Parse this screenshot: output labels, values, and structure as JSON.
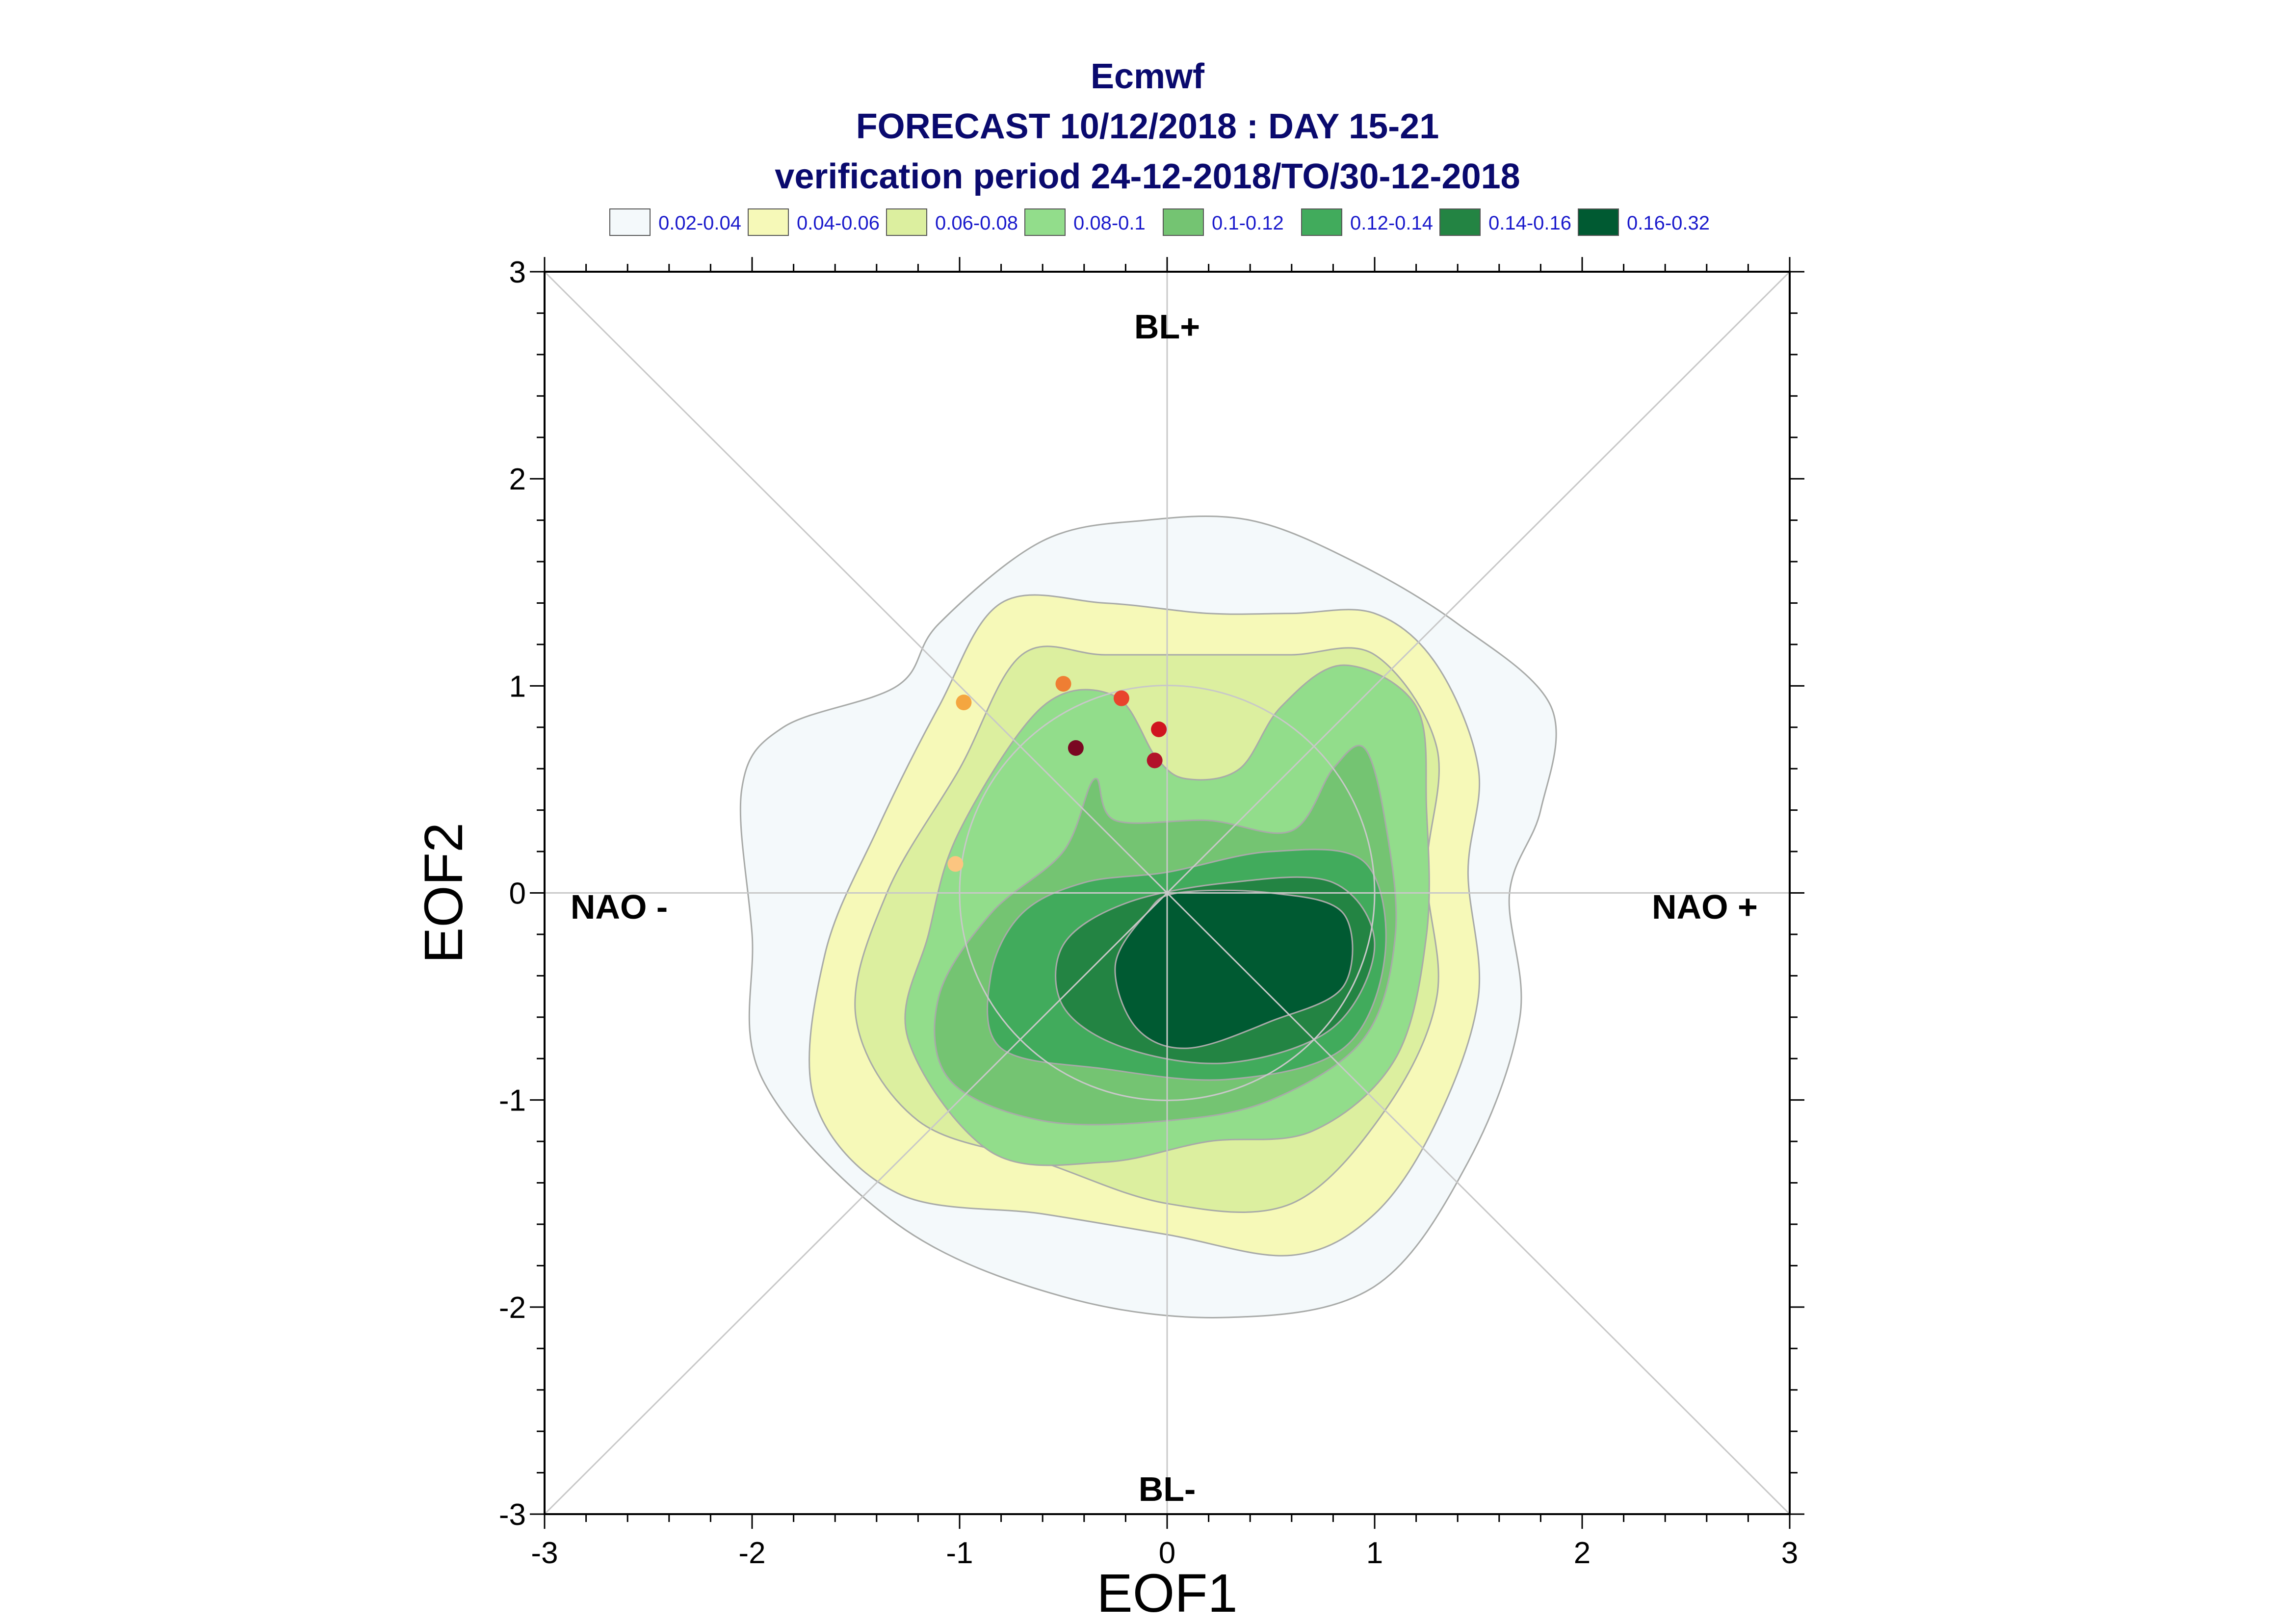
{
  "chart_data": {
    "type": "contour",
    "title": [
      "Ecmwf",
      "FORECAST 10/12/2018 : DAY 15-21",
      "verification period 24-12-2018/TO/30-12-2018"
    ],
    "xlabel": "EOF1",
    "ylabel": "EOF2",
    "xlim": [
      -3,
      3
    ],
    "ylim": [
      -3,
      3
    ],
    "xticks": [
      "-3",
      "-2",
      "-1",
      "0",
      "1",
      "2",
      "3"
    ],
    "yticks": [
      "-3",
      "-2",
      "-1",
      "0",
      "1",
      "2",
      "3"
    ],
    "regime_labels": {
      "top": "BL+",
      "bottom": "BL-",
      "left": "NAO -",
      "right": "NAO +"
    },
    "legend": [
      {
        "label": "0.02-0.04",
        "color": "#f4f9fb"
      },
      {
        "label": "0.04-0.06",
        "color": "#f6f9b8"
      },
      {
        "label": "0.06-0.08",
        "color": "#dcef9f"
      },
      {
        "label": "0.08-0.1",
        "color": "#92dd8b"
      },
      {
        "label": "0.1-0.12",
        "color": "#74c472"
      },
      {
        "label": "0.12-0.14",
        "color": "#41ab5c"
      },
      {
        "label": "0.14-0.16",
        "color": "#238443"
      },
      {
        "label": "0.16-0.32",
        "color": "#005a32"
      }
    ],
    "contours": [
      {
        "level": "0.02-0.04",
        "color": "#f4f9fb",
        "points": [
          [
            -0.6,
            1.7
          ],
          [
            -0.1,
            1.8
          ],
          [
            0.4,
            1.8
          ],
          [
            0.9,
            1.6
          ],
          [
            1.4,
            1.3
          ],
          [
            1.85,
            0.9
          ],
          [
            1.8,
            0.4
          ],
          [
            1.65,
            0
          ],
          [
            1.7,
            -0.6
          ],
          [
            1.45,
            -1.3
          ],
          [
            1.0,
            -1.9
          ],
          [
            0.3,
            -2.05
          ],
          [
            -0.5,
            -1.95
          ],
          [
            -1.3,
            -1.6
          ],
          [
            -1.95,
            -0.9
          ],
          [
            -2.0,
            -0.2
          ],
          [
            -2.05,
            0.5
          ],
          [
            -1.85,
            0.8
          ],
          [
            -1.3,
            1.0
          ],
          [
            -1.1,
            1.3
          ]
        ]
      },
      {
        "level": "0.04-0.06",
        "color": "#f6f9b8",
        "points": [
          [
            -0.8,
            1.4
          ],
          [
            -0.3,
            1.4
          ],
          [
            0.2,
            1.35
          ],
          [
            0.6,
            1.35
          ],
          [
            1.0,
            1.35
          ],
          [
            1.3,
            1.1
          ],
          [
            1.5,
            0.6
          ],
          [
            1.45,
            0.1
          ],
          [
            1.5,
            -0.5
          ],
          [
            1.3,
            -1.1
          ],
          [
            1.0,
            -1.55
          ],
          [
            0.6,
            -1.75
          ],
          [
            0,
            -1.65
          ],
          [
            -0.6,
            -1.55
          ],
          [
            -1.3,
            -1.45
          ],
          [
            -1.7,
            -1.0
          ],
          [
            -1.65,
            -0.3
          ],
          [
            -1.4,
            0.3
          ],
          [
            -1.1,
            0.9
          ]
        ]
      },
      {
        "level": "0.06-0.08",
        "color": "#dcef9f",
        "points": [
          [
            -0.7,
            1.15
          ],
          [
            -0.3,
            1.15
          ],
          [
            0.2,
            1.15
          ],
          [
            0.6,
            1.15
          ],
          [
            1.0,
            1.15
          ],
          [
            1.3,
            0.7
          ],
          [
            1.25,
            0.1
          ],
          [
            1.3,
            -0.5
          ],
          [
            1.05,
            -1.05
          ],
          [
            0.6,
            -1.5
          ],
          [
            0,
            -1.5
          ],
          [
            -0.6,
            -1.3
          ],
          [
            -1.2,
            -1.1
          ],
          [
            -1.5,
            -0.6
          ],
          [
            -1.35,
            0
          ],
          [
            -1.0,
            0.6
          ]
        ]
      },
      {
        "level": "0.08-0.1",
        "color": "#92dd8b",
        "points": [
          [
            -0.6,
            0.9
          ],
          [
            -0.25,
            0.95
          ],
          [
            -0.05,
            0.65
          ],
          [
            0.1,
            0.55
          ],
          [
            0.35,
            0.6
          ],
          [
            0.55,
            0.9
          ],
          [
            0.85,
            1.1
          ],
          [
            1.2,
            0.9
          ],
          [
            1.25,
            0.4
          ],
          [
            1.25,
            -0.2
          ],
          [
            1.1,
            -0.8
          ],
          [
            0.7,
            -1.15
          ],
          [
            0.2,
            -1.2
          ],
          [
            -0.3,
            -1.3
          ],
          [
            -0.85,
            -1.25
          ],
          [
            -1.25,
            -0.7
          ],
          [
            -1.15,
            -0.2
          ],
          [
            -1.0,
            0.3
          ]
        ]
      },
      {
        "level": "0.1-0.12",
        "color": "#74c472",
        "points": [
          [
            -0.35,
            0.55
          ],
          [
            -0.25,
            0.35
          ],
          [
            0.2,
            0.35
          ],
          [
            0.6,
            0.3
          ],
          [
            0.8,
            0.6
          ],
          [
            0.95,
            0.7
          ],
          [
            1.05,
            0.35
          ],
          [
            1.1,
            -0.2
          ],
          [
            0.95,
            -0.7
          ],
          [
            0.5,
            -1.0
          ],
          [
            0,
            -1.1
          ],
          [
            -0.6,
            -1.1
          ],
          [
            -1.05,
            -0.9
          ],
          [
            -1.1,
            -0.5
          ],
          [
            -0.85,
            -0.1
          ],
          [
            -0.5,
            0.2
          ]
        ]
      },
      {
        "level": "0.12-0.14",
        "color": "#41ab5c",
        "points": [
          [
            -0.4,
            0.05
          ],
          [
            0,
            0.1
          ],
          [
            0.5,
            0.2
          ],
          [
            0.95,
            0.15
          ],
          [
            1.05,
            -0.3
          ],
          [
            0.85,
            -0.75
          ],
          [
            0.3,
            -0.9
          ],
          [
            -0.3,
            -0.85
          ],
          [
            -0.8,
            -0.75
          ],
          [
            -0.85,
            -0.4
          ],
          [
            -0.7,
            -0.1
          ]
        ]
      },
      {
        "level": "0.14-0.16",
        "color": "#238443",
        "points": [
          [
            -0.2,
            -0.05
          ],
          [
            0.3,
            0.05
          ],
          [
            0.8,
            0.05
          ],
          [
            1.0,
            -0.25
          ],
          [
            0.8,
            -0.65
          ],
          [
            0.3,
            -0.82
          ],
          [
            -0.2,
            -0.75
          ],
          [
            -0.5,
            -0.55
          ],
          [
            -0.5,
            -0.25
          ]
        ]
      },
      {
        "level": "0.16-0.32",
        "color": "#005a32",
        "points": [
          [
            0.05,
            0
          ],
          [
            0.5,
            0
          ],
          [
            0.85,
            -0.1
          ],
          [
            0.85,
            -0.45
          ],
          [
            0.5,
            -0.62
          ],
          [
            0.1,
            -0.75
          ],
          [
            -0.15,
            -0.65
          ],
          [
            -0.25,
            -0.35
          ],
          [
            -0.1,
            -0.1
          ]
        ]
      }
    ],
    "points": [
      {
        "x": -0.98,
        "y": 0.92,
        "color": "#f4a640"
      },
      {
        "x": -0.5,
        "y": 1.01,
        "color": "#ef7e33"
      },
      {
        "x": -0.22,
        "y": 0.94,
        "color": "#e8442c"
      },
      {
        "x": -0.04,
        "y": 0.79,
        "color": "#d0151f"
      },
      {
        "x": -0.44,
        "y": 0.7,
        "color": "#7a0822"
      },
      {
        "x": -0.06,
        "y": 0.64,
        "color": "#b2122a"
      },
      {
        "x": -1.02,
        "y": 0.14,
        "color": "#fcc580"
      }
    ],
    "grid": false
  }
}
